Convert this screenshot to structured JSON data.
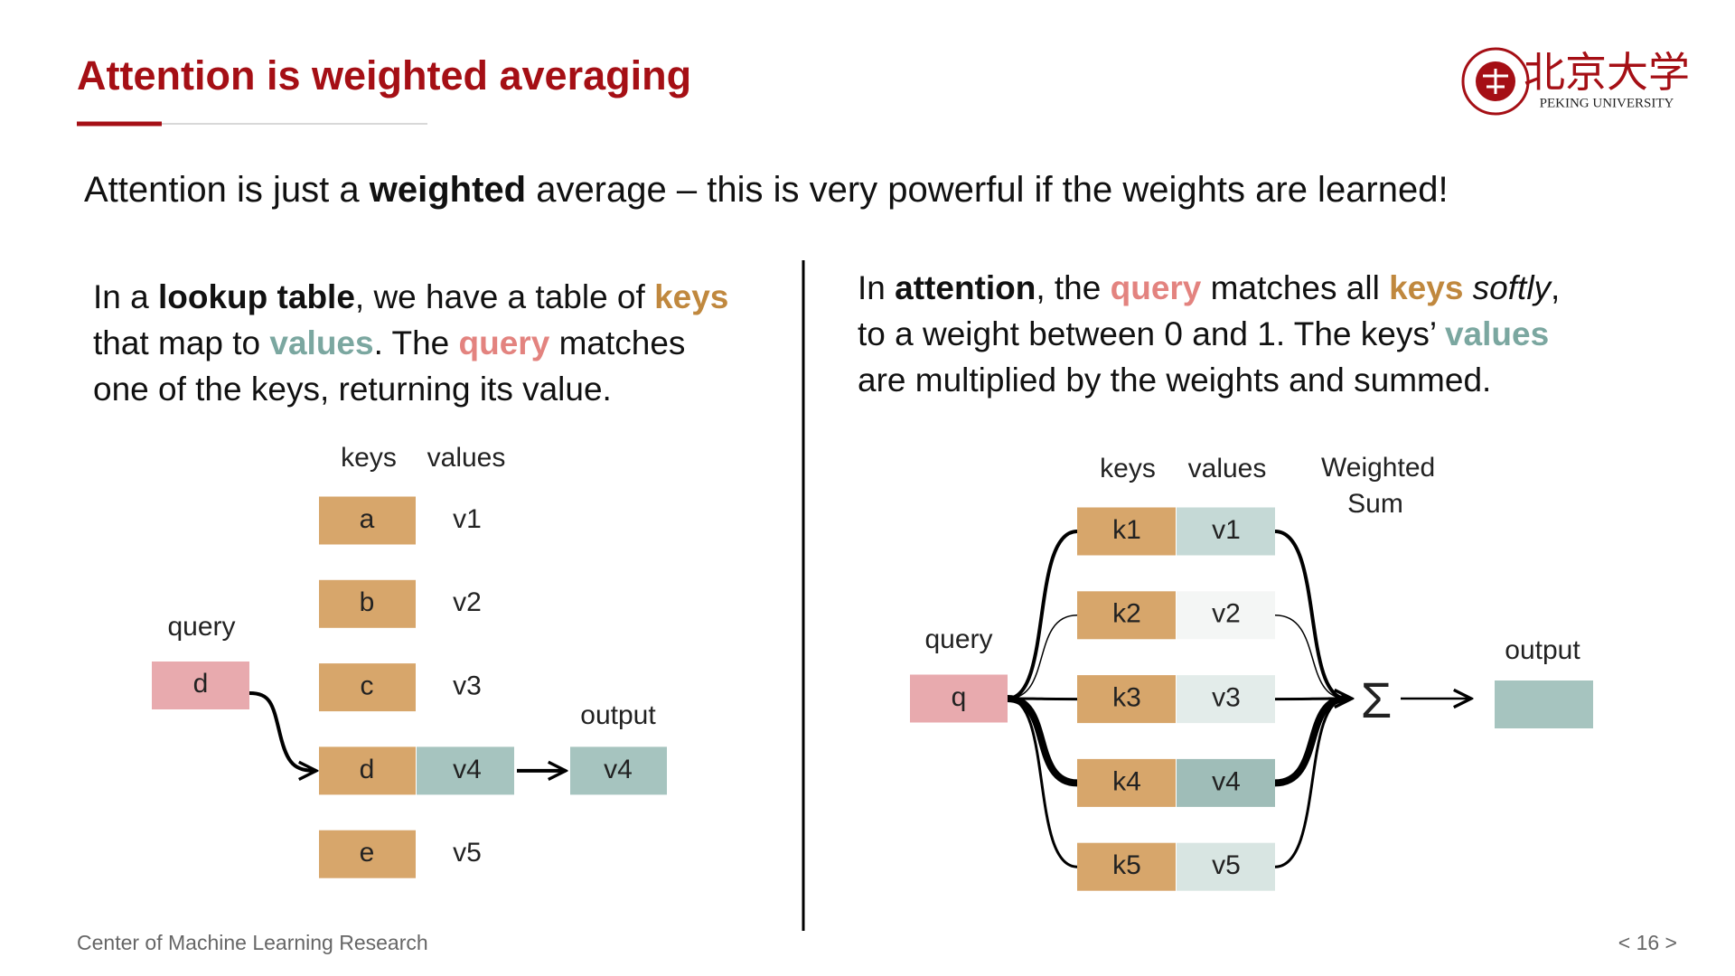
{
  "header": {
    "title": "Attention is weighted averaging",
    "logo_cn": "北京大学",
    "logo_en": "PEKING UNIVERSITY"
  },
  "subtitle": [
    "Attention is just a ",
    "weighted",
    " average – this is very powerful if the weights are learned!"
  ],
  "left": {
    "text": [
      "In a ",
      "lookup table",
      ", we have a table of ",
      "keys",
      "that map to ",
      "values",
      ". The ",
      "query",
      " matches",
      "one of the keys, returning its value."
    ],
    "diagram": {
      "keys_label": "keys",
      "values_label": "values",
      "query_label": "query",
      "output_label": "output",
      "keys": [
        "a",
        "b",
        "c",
        "d",
        "e"
      ],
      "values": [
        "v1",
        "v2",
        "v3",
        "v4",
        "v5"
      ],
      "query": "d",
      "output": "v4"
    }
  },
  "right": {
    "text": [
      "In ",
      "attention",
      ", the ",
      "query",
      " matches all ",
      "keys",
      " softly",
      ",",
      "to a weight between 0 and 1. The keys’ ",
      "values",
      "are multiplied by the weights and summed."
    ],
    "diagram": {
      "keys_label": "keys",
      "values_label": "values",
      "sum_label": "Weighted Sum",
      "query_label": "query",
      "output_label": "output",
      "keys": [
        "k1",
        "k2",
        "k3",
        "k4",
        "k5"
      ],
      "values": [
        "v1",
        "v2",
        "v3",
        "v4",
        "v5"
      ],
      "value_colors": [
        "#c5d9d6",
        "#f4f6f5",
        "#e3ecea",
        "#9fbdb8",
        "#d8e5e2"
      ],
      "query": "q",
      "sum_symbol": "Σ"
    }
  },
  "footer": {
    "left": "Center of Machine Learning Research",
    "page": "< 16 >"
  }
}
